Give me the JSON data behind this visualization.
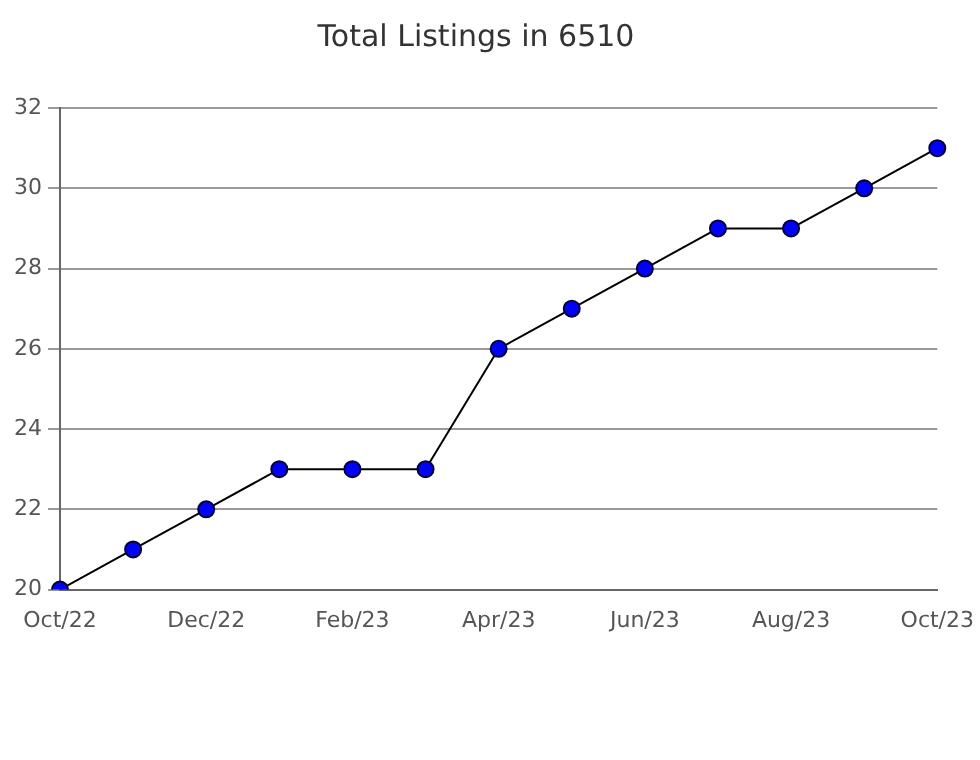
{
  "chart_data": {
    "type": "line",
    "title": "Total Listings in 6510",
    "categories": [
      "Oct/22",
      null,
      "Dec/22",
      null,
      "Feb/23",
      null,
      "Apr/23",
      null,
      "Jun/23",
      null,
      "Aug/23",
      null,
      "Oct/23"
    ],
    "series": [
      {
        "color": "#0000ff",
        "values": [
          20,
          21,
          22,
          23,
          23,
          23,
          26,
          27,
          28,
          29,
          29,
          30,
          31
        ]
      }
    ],
    "ylim": [
      20,
      32
    ],
    "yticks": [
      20,
      22,
      24,
      26,
      28,
      30,
      32
    ],
    "grid": "y",
    "legend": false,
    "marker": "circle",
    "line_style": "solid"
  }
}
